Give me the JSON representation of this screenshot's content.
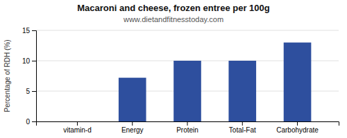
{
  "chart_data": {
    "type": "bar",
    "title": "Macaroni and cheese, frozen entree per 100g",
    "subtitle": "www.dietandfitnesstoday.com",
    "ylabel": "Percentage of RDH (%)",
    "categories": [
      "vitamin-d",
      "Energy",
      "Protein",
      "Total-Fat",
      "Carbohydrate"
    ],
    "values": [
      0,
      7.2,
      10.0,
      10.0,
      13.0
    ],
    "color": "#2e4f9e",
    "ylim": [
      0,
      15
    ],
    "yticks": [
      0,
      5,
      10,
      15
    ],
    "grid": true
  }
}
